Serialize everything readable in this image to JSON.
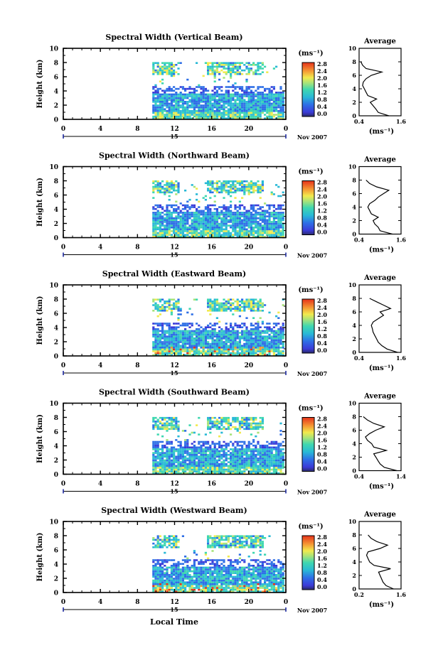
{
  "figure": {
    "xlabel": "Local Time",
    "date_label": "Nov 2007",
    "day_label": "15",
    "unit_label": "(ms⁻¹)",
    "average_title": "Average",
    "average_xlabel": "(ms⁻¹)",
    "ylabel": "Height (km)"
  },
  "colors": {
    "high": "#e5321b",
    "mid": "#29b9d6",
    "low": "#2a2dcc",
    "cloud_green": "#a7e37a"
  },
  "chart_data": [
    {
      "type": "heatmap",
      "title": "Spectral Width (Vertical Beam)",
      "xlabel": "",
      "ylabel": "Height (km)",
      "xlim": [
        0,
        24
      ],
      "ylim": [
        0,
        10
      ],
      "x_ticks": [
        "0",
        "4",
        "8",
        "12",
        "16",
        "20",
        "0"
      ],
      "y_ticks": [
        "0",
        "2",
        "4",
        "6",
        "8",
        "10"
      ],
      "colorbar": {
        "ticks": [
          "0.0",
          "0.4",
          "0.8",
          "1.2",
          "1.6",
          "2.0",
          "2.4",
          "2.8"
        ],
        "range": [
          0,
          2.8
        ]
      },
      "data_start_hour": 9.6,
      "average": {
        "xlim": [
          0.4,
          1.6
        ],
        "x_ticks": [
          "0.4",
          "1.6"
        ],
        "heights": [
          0,
          0.5,
          1.0,
          1.5,
          2.0,
          2.5,
          3.0,
          3.5,
          4.0,
          4.5,
          5.0,
          5.5,
          6.0,
          6.5,
          7.0,
          7.5,
          8.0
        ],
        "values": [
          1.25,
          0.95,
          0.88,
          0.8,
          0.72,
          0.9,
          0.65,
          0.6,
          0.55,
          0.5,
          0.52,
          0.6,
          0.75,
          1.05,
          0.6,
          0.5,
          0.45
        ]
      }
    },
    {
      "type": "heatmap",
      "title": "Spectral Width (Northward Beam)",
      "xlabel": "",
      "ylabel": "Height (km)",
      "xlim": [
        0,
        24
      ],
      "ylim": [
        0,
        10
      ],
      "x_ticks": [
        "0",
        "4",
        "8",
        "12",
        "16",
        "20",
        "0"
      ],
      "y_ticks": [
        "0",
        "2",
        "4",
        "6",
        "8",
        "10"
      ],
      "colorbar": {
        "ticks": [
          "0.0",
          "0.4",
          "0.8",
          "1.2",
          "1.6",
          "2.0",
          "2.4",
          "2.8"
        ],
        "range": [
          0,
          2.8
        ]
      },
      "data_start_hour": 9.6,
      "average": {
        "xlim": [
          0.4,
          1.6
        ],
        "x_ticks": [
          "0.4",
          "1.6"
        ],
        "heights": [
          0,
          0.5,
          1.0,
          1.5,
          2.0,
          2.5,
          3.0,
          3.5,
          4.0,
          4.5,
          5.0,
          5.5,
          6.0,
          6.5,
          7.0,
          7.5,
          8.0
        ],
        "values": [
          1.35,
          1.0,
          0.95,
          0.85,
          0.8,
          0.95,
          0.75,
          0.7,
          0.65,
          0.7,
          0.85,
          0.95,
          1.1,
          1.25,
          0.9,
          0.7,
          0.6
        ]
      }
    },
    {
      "type": "heatmap",
      "title": "Spectral Width (Eastward Beam)",
      "xlabel": "",
      "ylabel": "Height (km)",
      "xlim": [
        0,
        24
      ],
      "ylim": [
        0,
        10
      ],
      "x_ticks": [
        "0",
        "4",
        "8",
        "12",
        "16",
        "20",
        "0"
      ],
      "y_ticks": [
        "0",
        "2",
        "4",
        "6",
        "8",
        "10"
      ],
      "colorbar": {
        "ticks": [
          "0.0",
          "0.4",
          "0.8",
          "1.2",
          "1.6",
          "2.0",
          "2.4",
          "2.8"
        ],
        "range": [
          0,
          2.8
        ]
      },
      "data_start_hour": 9.6,
      "average": {
        "xlim": [
          0.4,
          1.6
        ],
        "x_ticks": [
          "0.4",
          "1.6"
        ],
        "heights": [
          0,
          0.5,
          1.0,
          1.5,
          2.0,
          2.5,
          3.0,
          3.5,
          4.0,
          4.5,
          5.0,
          5.5,
          6.0,
          6.5,
          7.0,
          7.5,
          8.0
        ],
        "values": [
          1.5,
          1.2,
          1.05,
          0.95,
          0.9,
          0.85,
          0.8,
          0.78,
          0.75,
          0.8,
          0.95,
          1.1,
          1.0,
          1.3,
          1.1,
          0.9,
          0.7
        ]
      }
    },
    {
      "type": "heatmap",
      "title": "Spectral Width (Southward Beam)",
      "xlabel": "",
      "ylabel": "Height (km)",
      "xlim": [
        0,
        24
      ],
      "ylim": [
        0,
        10
      ],
      "x_ticks": [
        "0",
        "4",
        "8",
        "12",
        "16",
        "20",
        "0"
      ],
      "y_ticks": [
        "0",
        "2",
        "4",
        "6",
        "8",
        "10"
      ],
      "colorbar": {
        "ticks": [
          "0.0",
          "0.4",
          "0.8",
          "1.2",
          "1.6",
          "2.0",
          "2.4",
          "2.8"
        ],
        "range": [
          0,
          2.8
        ]
      },
      "data_start_hour": 9.6,
      "average": {
        "xlim": [
          0.4,
          1.4
        ],
        "x_ticks": [
          "0.4",
          "1.4"
        ],
        "heights": [
          0,
          0.5,
          1.0,
          1.5,
          2.0,
          2.5,
          3.0,
          3.5,
          4.0,
          4.5,
          5.0,
          5.5,
          6.0,
          6.5,
          7.0,
          7.5,
          8.0
        ],
        "values": [
          1.3,
          1.0,
          0.9,
          0.85,
          0.8,
          0.75,
          1.05,
          0.75,
          0.7,
          0.6,
          0.55,
          0.65,
          0.8,
          1.0,
          0.75,
          0.6,
          0.5
        ]
      }
    },
    {
      "type": "heatmap",
      "title": "Spectral Width (Westward Beam)",
      "xlabel": "Local Time",
      "ylabel": "Height (km)",
      "xlim": [
        0,
        24
      ],
      "ylim": [
        0,
        10
      ],
      "x_ticks": [
        "0",
        "4",
        "8",
        "12",
        "16",
        "20",
        "0"
      ],
      "y_ticks": [
        "0",
        "2",
        "4",
        "6",
        "8",
        "10"
      ],
      "colorbar": {
        "ticks": [
          "0.0",
          "0.4",
          "0.8",
          "1.2",
          "1.6",
          "2.0",
          "2.4",
          "2.8"
        ],
        "range": [
          0,
          2.8
        ]
      },
      "data_start_hour": 9.6,
      "average": {
        "xlim": [
          0.2,
          1.6
        ],
        "x_ticks": [
          "0.2",
          "1.6"
        ],
        "heights": [
          0,
          0.5,
          1.0,
          1.5,
          2.0,
          2.5,
          3.0,
          3.5,
          4.0,
          4.5,
          5.0,
          5.5,
          6.0,
          6.5,
          7.0,
          7.5,
          8.0
        ],
        "values": [
          1.35,
          1.1,
          1.0,
          0.95,
          0.9,
          0.85,
          1.25,
          0.7,
          0.55,
          0.5,
          0.45,
          0.5,
          0.9,
          1.15,
          0.8,
          0.6,
          0.5
        ]
      }
    }
  ]
}
